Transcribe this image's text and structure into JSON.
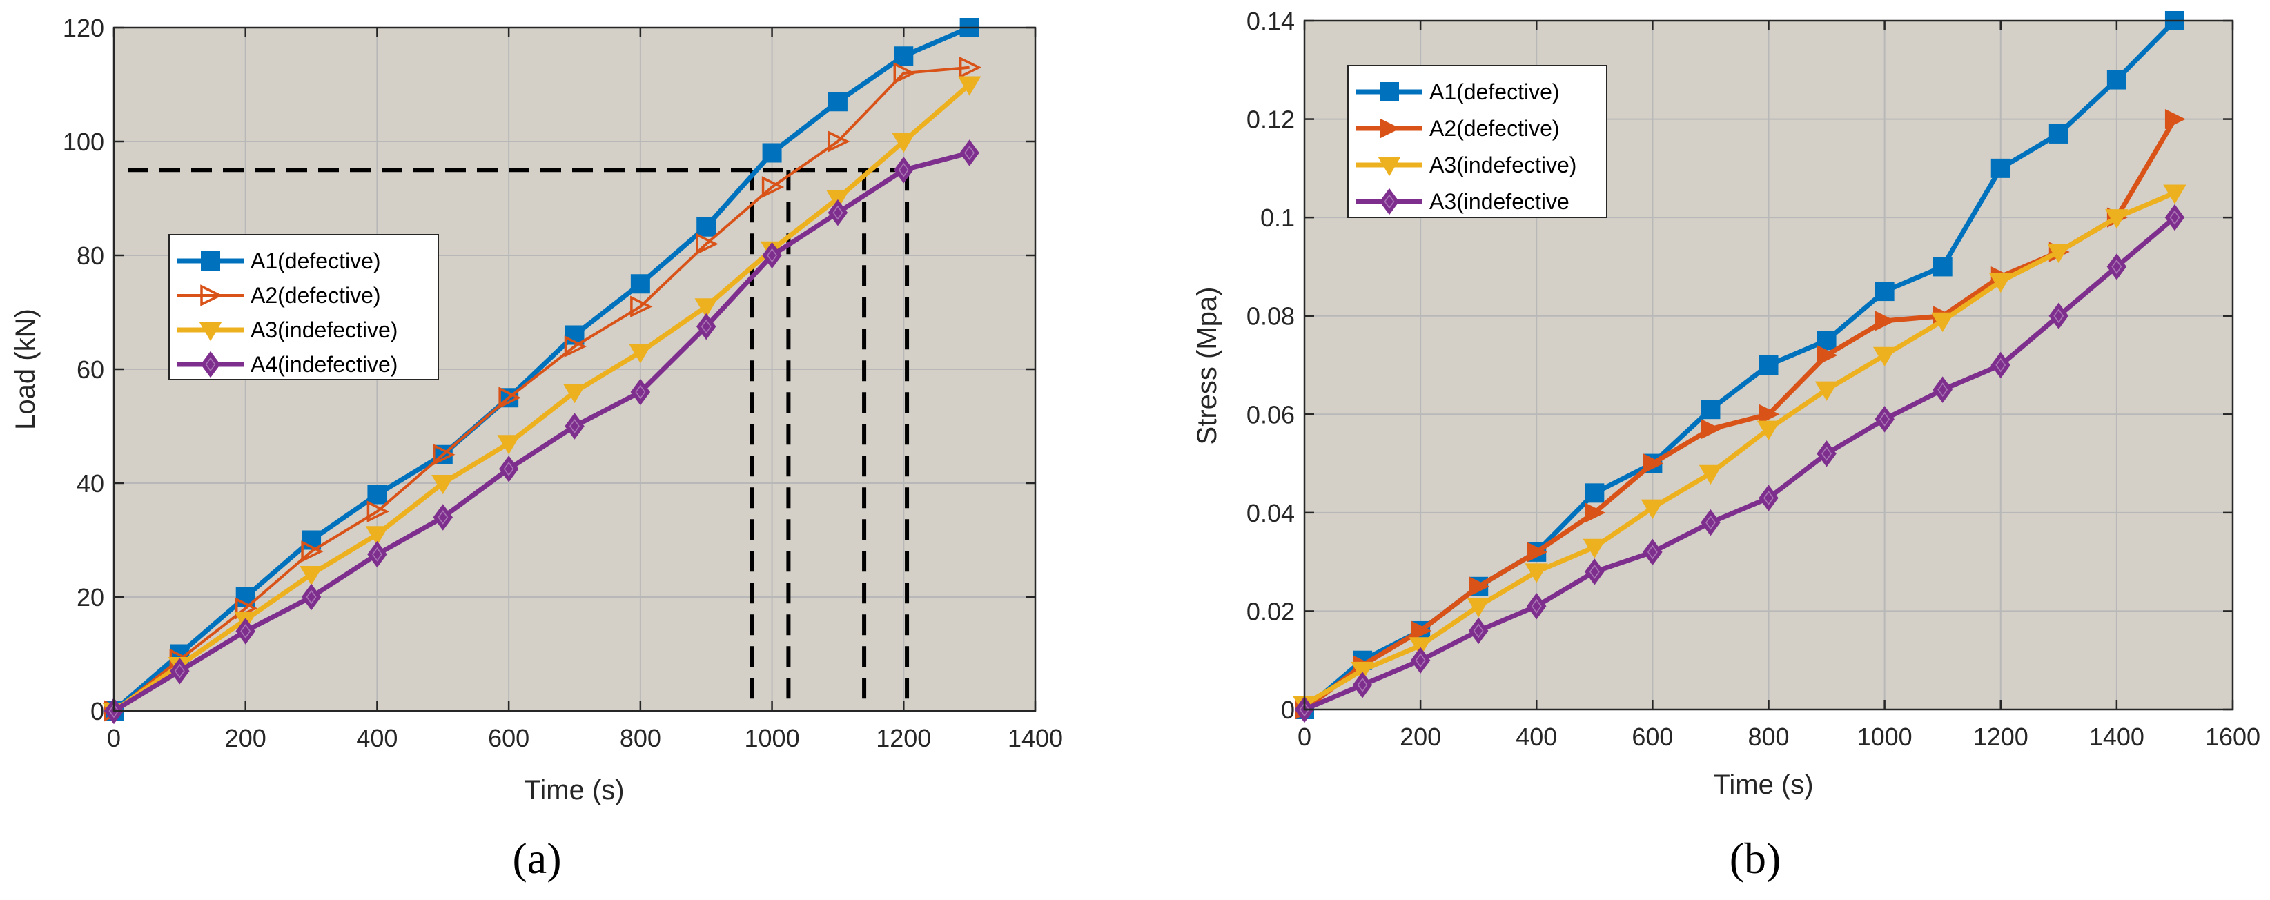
{
  "colors": {
    "plot_bg": "#d4d0c8",
    "grid": "#b8b8b8",
    "axis": "#262626",
    "A1": "#0072bd",
    "A2": "#d95319",
    "A3": "#edb120",
    "A4": "#7e2f8e",
    "reference": "#000000"
  },
  "chart_data": [
    {
      "panel": "(a)",
      "type": "line",
      "xlabel": "Time (s)",
      "ylabel": "Load (kN)",
      "xlim": [
        0,
        1400
      ],
      "ylim": [
        0,
        120
      ],
      "xticks": [
        0,
        200,
        400,
        600,
        800,
        1000,
        1200,
        1400
      ],
      "yticks": [
        0,
        20,
        40,
        60,
        80,
        100,
        120
      ],
      "xtick_labels": [
        "0",
        "200",
        "400",
        "600",
        "800",
        "1000",
        "1200",
        "1400"
      ],
      "ytick_labels": [
        "0",
        "20",
        "40",
        "60",
        "80",
        "100",
        "120"
      ],
      "grid": true,
      "legend_position": "center-left",
      "x": [
        0,
        100,
        200,
        300,
        400,
        500,
        600,
        700,
        800,
        900,
        1000,
        1100,
        1200,
        1300
      ],
      "series": [
        {
          "name": "A1(defective)",
          "key": "A1",
          "marker": "square",
          "filled": true,
          "width": "thick",
          "values": [
            0,
            10,
            20,
            30,
            38,
            45,
            55,
            66,
            75,
            85,
            98,
            107,
            115,
            120
          ]
        },
        {
          "name": "A2(defective)",
          "key": "A2",
          "marker": "triangle-right",
          "filled": false,
          "width": "thin",
          "values": [
            0,
            9,
            18,
            28,
            35,
            45,
            55,
            64,
            71,
            82,
            92,
            100,
            112,
            113
          ]
        },
        {
          "name": "A3(indefective)",
          "key": "A3",
          "marker": "triangle-down",
          "filled": true,
          "width": "thick",
          "values": [
            0,
            8,
            16,
            24,
            31,
            40,
            47,
            56,
            63,
            71,
            81,
            90,
            100,
            110
          ]
        },
        {
          "name": "A4(indefective)",
          "key": "A4",
          "marker": "diamond",
          "filled": true,
          "width": "thick",
          "values": [
            0,
            7,
            14,
            20,
            27.5,
            34,
            42.5,
            50,
            56,
            67.5,
            80,
            87.5,
            95,
            98
          ]
        }
      ],
      "reference_lines": {
        "horizontal": {
          "y": 95,
          "x_from": 0,
          "x_to": 1200
        },
        "verticals": [
          {
            "x": 970,
            "y_top": 95
          },
          {
            "x": 1025,
            "y_top": 95
          },
          {
            "x": 1140,
            "y_top": 95
          },
          {
            "x": 1205,
            "y_top": 95
          }
        ]
      }
    },
    {
      "panel": "(b)",
      "type": "line",
      "xlabel": "Time (s)",
      "ylabel": "Stress (Mpa)",
      "xlim": [
        0,
        1600
      ],
      "ylim": [
        0,
        0.14
      ],
      "xticks": [
        0,
        200,
        400,
        600,
        800,
        1000,
        1200,
        1400,
        1600
      ],
      "yticks": [
        0,
        0.02,
        0.04,
        0.06,
        0.08,
        0.1,
        0.12,
        0.14
      ],
      "xtick_labels": [
        "0",
        "200",
        "400",
        "600",
        "800",
        "1000",
        "1200",
        "1400",
        "1600"
      ],
      "ytick_labels": [
        "0",
        "0.02",
        "0.04",
        "0.06",
        "0.08",
        "0.1",
        "0.12",
        "0.14"
      ],
      "grid": true,
      "legend_position": "top-left",
      "x": [
        0,
        100,
        200,
        300,
        400,
        500,
        600,
        700,
        800,
        900,
        1000,
        1100,
        1200,
        1300,
        1400,
        1500
      ],
      "series": [
        {
          "name": "A1(defective)",
          "key": "A1",
          "marker": "square",
          "filled": true,
          "width": "thick",
          "values": [
            0,
            0.01,
            0.016,
            0.025,
            0.032,
            0.044,
            0.05,
            0.061,
            0.07,
            0.075,
            0.085,
            0.09,
            0.11,
            0.117,
            0.128,
            0.14
          ]
        },
        {
          "name": "A2(defective)",
          "key": "A2",
          "marker": "triangle-right",
          "filled": true,
          "width": "thick",
          "values": [
            0,
            0.009,
            0.016,
            0.025,
            0.032,
            0.04,
            0.05,
            0.057,
            0.06,
            0.072,
            0.079,
            0.08,
            0.088,
            0.093,
            0.1,
            0.12
          ]
        },
        {
          "name": "A3(indefective)",
          "key": "A3",
          "marker": "triangle-down",
          "filled": true,
          "width": "thick",
          "values": [
            0.001,
            0.008,
            0.013,
            0.021,
            0.028,
            0.033,
            0.041,
            0.048,
            0.057,
            0.065,
            0.072,
            0.079,
            0.087,
            0.093,
            0.1,
            0.105
          ]
        },
        {
          "name": "A3(indefective",
          "key": "A4",
          "marker": "diamond",
          "filled": true,
          "width": "thick",
          "values": [
            0,
            0.005,
            0.01,
            0.016,
            0.021,
            0.028,
            0.032,
            0.038,
            0.043,
            0.052,
            0.059,
            0.065,
            0.07,
            0.08,
            0.09,
            0.1
          ]
        }
      ]
    }
  ]
}
